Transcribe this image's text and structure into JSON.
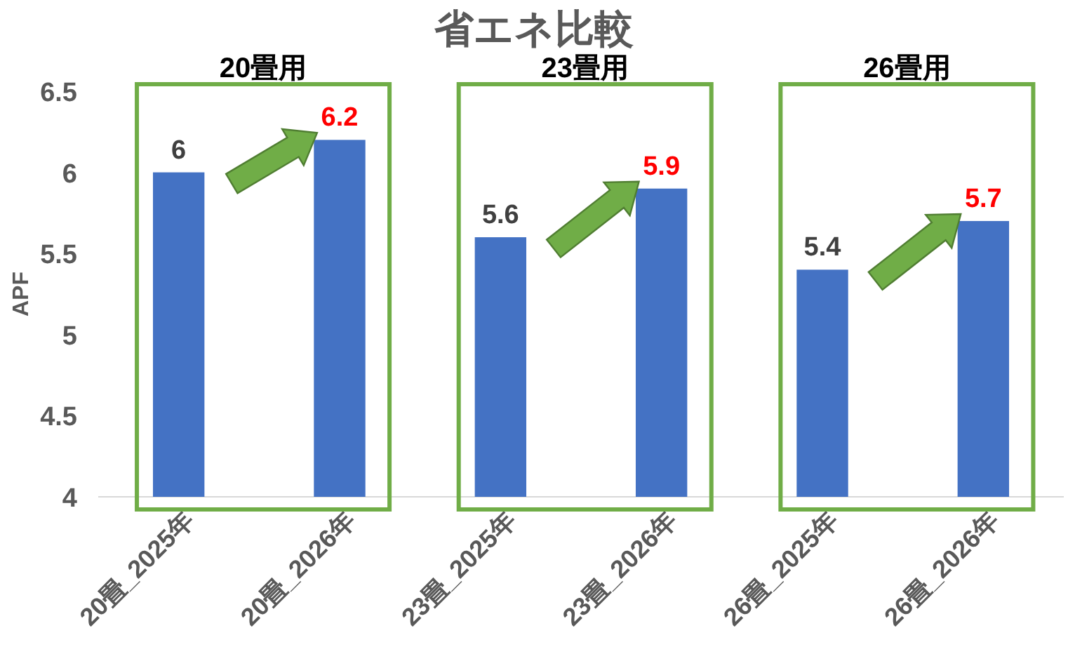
{
  "chart_data": {
    "type": "bar",
    "title": "省エネ比較",
    "ylabel": "APF",
    "categories": [
      "20畳_2025年",
      "20畳_2026年",
      "23畳_2025年",
      "23畳_2026年",
      "26畳_2025年",
      "26畳_2026年"
    ],
    "values": [
      6,
      6.2,
      5.6,
      5.9,
      5.4,
      5.7
    ],
    "color": "#4472c4",
    "ylim": [
      4,
      6.5
    ],
    "yticks": [
      4,
      4.5,
      5,
      5.5,
      6,
      6.5
    ],
    "grid": false,
    "data_labels": true,
    "annotations": [
      "20畳用",
      "23畳用",
      "26畳用"
    ]
  }
}
